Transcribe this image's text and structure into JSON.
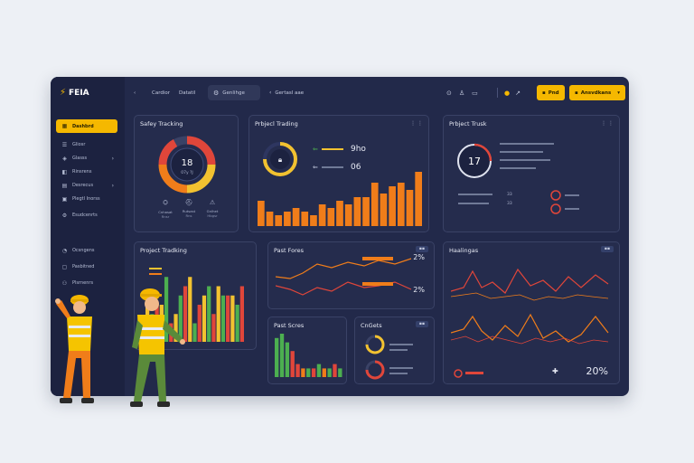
{
  "app": {
    "name": "FEIA"
  },
  "sidebar": {
    "items": [
      {
        "label": "Dashbrd",
        "icon": "grid-icon",
        "active": true
      },
      {
        "label": "Gliosr",
        "icon": "list-icon"
      },
      {
        "label": "Glasss",
        "icon": "tag-icon",
        "chevron": true
      },
      {
        "label": "Rinsrens",
        "icon": "layers-icon"
      },
      {
        "label": "Desrecus",
        "icon": "chart-icon",
        "chevron": true
      },
      {
        "label": "Plegtl Inorss",
        "icon": "folder-icon"
      },
      {
        "label": "Esudcenrts",
        "icon": "settings-icon"
      },
      {
        "label": "Ocsngens",
        "icon": "gauge-icon"
      },
      {
        "label": "Pasbitned",
        "icon": "box-icon"
      },
      {
        "label": "Plsrnenrs",
        "icon": "users-icon"
      }
    ]
  },
  "topbar": {
    "back": "‹",
    "links": [
      "Cardior",
      "Datatil"
    ],
    "tab_active": "Genlihge",
    "tab_other": "Gertasl aae",
    "button_1": "Pnd",
    "button_2": "Ansvdkans"
  },
  "cards": {
    "safety": {
      "title": "Safey Tracking",
      "gauge_value": "18",
      "gauge_sub": "07y ?J",
      "icons": [
        {
          "label": "Cnhasat",
          "sub": "Rnsr"
        },
        {
          "label": "Rutsast",
          "sub": "Rns"
        },
        {
          "label": "Gnlhet",
          "sub": "Hbgsr"
        }
      ]
    },
    "project_top": {
      "title": "Prbjecl Trading",
      "menu": "⋮ ⋮",
      "stat1": "9ho",
      "stat2": "06",
      "chart_data": {
        "type": "bar",
        "values": [
          7,
          4,
          3,
          4,
          5,
          4,
          3,
          6,
          5,
          7,
          6,
          8,
          8,
          12,
          9,
          11,
          12,
          10,
          15
        ]
      }
    },
    "project_truck": {
      "title": "Prbject Trusk",
      "menu": "⋮ ⋮",
      "ring_value": "17",
      "stat1": "33",
      "stat2": "33"
    },
    "project_mid": {
      "title": "Project Tradking",
      "chart_data": {
        "type": "bar",
        "series": [
          {
            "name": "s1",
            "color": "#f2c230",
            "values": [
              5,
              4,
              3,
              7,
              5,
              6,
              5
            ]
          },
          {
            "name": "s2",
            "color": "#4caf50",
            "values": [
              3,
              7,
              5,
              2,
              6,
              5,
              4
            ]
          },
          {
            "name": "s3",
            "color": "#e0463a",
            "values": [
              4,
              2,
              6,
              4,
              3,
              5,
              6
            ]
          }
        ]
      }
    },
    "past_fores": {
      "title": "Past Fores",
      "val1": "2%",
      "val2": "2%"
    },
    "past_scres": {
      "title": "Past Scres",
      "chart_data": {
        "type": "bar",
        "values": [
          9,
          10,
          8,
          6,
          3,
          2,
          2,
          2,
          3,
          2,
          2,
          3,
          2
        ]
      }
    },
    "cegets": {
      "title": "CnGets"
    },
    "heathgs": {
      "title": "Haalingas",
      "percent": "20%"
    }
  },
  "colors": {
    "accent": "#f5b800",
    "orange": "#f07d1a",
    "red": "#e0463a",
    "green": "#4caf50"
  }
}
